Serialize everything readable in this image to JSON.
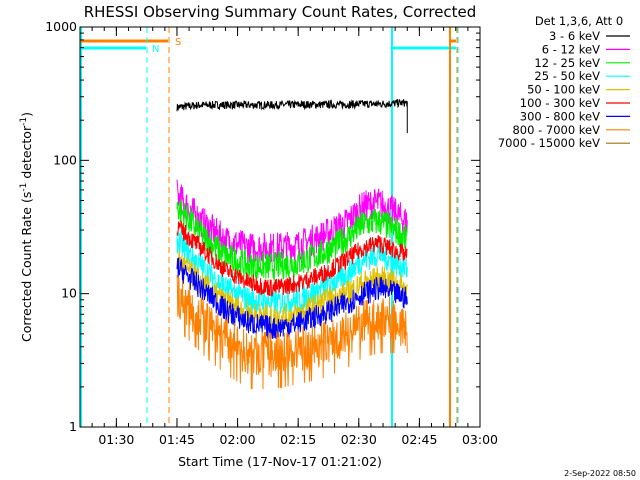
{
  "chart_data": {
    "type": "line",
    "title": "RHESSI Observing Summary Count Rates, Corrected",
    "xlabel": "Start Time (17-Nov-17 01:21:02)",
    "ylabel_parts": [
      "Corrected Count Rate (s",
      "-1",
      " detector",
      "-1",
      ")"
    ],
    "y_scale": "log",
    "ylim": [
      1,
      1000
    ],
    "y_ticks": [
      {
        "value": 1,
        "label": "1"
      },
      {
        "value": 10,
        "label": "10"
      },
      {
        "value": 100,
        "label": "100"
      },
      {
        "value": 1000,
        "label": "1000"
      }
    ],
    "xlim_minutes": [
      0,
      99
    ],
    "x_ticks": [
      {
        "minute": 9,
        "label": "01:30"
      },
      {
        "minute": 24,
        "label": "01:45"
      },
      {
        "minute": 39,
        "label": "02:00"
      },
      {
        "minute": 54,
        "label": "02:15"
      },
      {
        "minute": 69,
        "label": "02:30"
      },
      {
        "minute": 84,
        "label": "02:45"
      },
      {
        "minute": 99,
        "label": "03:00"
      }
    ],
    "grid": false,
    "legend_position": "right",
    "legend_header": "Det 1,3,6, Att 0",
    "time_minutes": [
      24,
      30,
      36,
      42,
      48,
      54,
      60,
      66,
      70,
      74,
      78,
      80,
      81
    ],
    "series": [
      {
        "name": "3 - 6 keV",
        "color": "#000000",
        "values": [
          250,
          260,
          260,
          260,
          260,
          262,
          262,
          262,
          265,
          265,
          268,
          270,
          270
        ]
      },
      {
        "name": "6 - 12 keV",
        "color": "#ff00ff",
        "values": [
          55,
          35,
          25,
          22,
          22,
          23,
          27,
          34,
          45,
          48,
          40,
          36,
          34
        ]
      },
      {
        "name": "12 - 25 keV",
        "color": "#00ee00",
        "values": [
          45,
          28,
          19,
          16,
          16,
          17,
          20,
          26,
          33,
          35,
          30,
          27,
          25
        ]
      },
      {
        "name": "25 - 50 keV",
        "color": "#00ffff",
        "values": [
          25,
          16,
          11,
          9,
          8.5,
          9,
          11,
          14,
          18,
          20,
          17,
          16,
          15
        ]
      },
      {
        "name": "50 - 100 keV",
        "color": "#e0c000",
        "values": [
          18,
          12,
          8.5,
          7,
          6.5,
          7,
          8.5,
          10,
          12,
          13,
          12,
          11,
          11
        ]
      },
      {
        "name": "100 - 300 keV",
        "color": "#ff0000",
        "values": [
          32,
          22,
          15,
          12,
          11,
          12,
          14,
          18,
          22,
          24,
          21,
          20,
          19
        ]
      },
      {
        "name": "300 - 800 keV",
        "color": "#0000ff",
        "values": [
          16,
          11,
          7.5,
          6,
          5.5,
          6,
          7,
          8.5,
          10,
          11,
          10,
          9.5,
          9
        ]
      },
      {
        "name": "800 - 7000 keV",
        "color": "#ff8000",
        "values": [
          10,
          6.5,
          4.5,
          3.5,
          3.5,
          3.8,
          4.2,
          5,
          6,
          6.5,
          6.5,
          5.5,
          5
        ]
      },
      {
        "name": "7000 - 15000 keV",
        "color": "#a07010",
        "values": [
          null,
          null,
          null,
          null,
          null,
          null,
          null,
          null,
          null,
          null,
          null,
          null,
          null
        ]
      }
    ],
    "markers": [
      {
        "label": "S",
        "color": "#ff8000"
      },
      {
        "label": "N",
        "color": "#00ffff"
      }
    ],
    "footer_date": "2-Sep-2022 08:50"
  }
}
